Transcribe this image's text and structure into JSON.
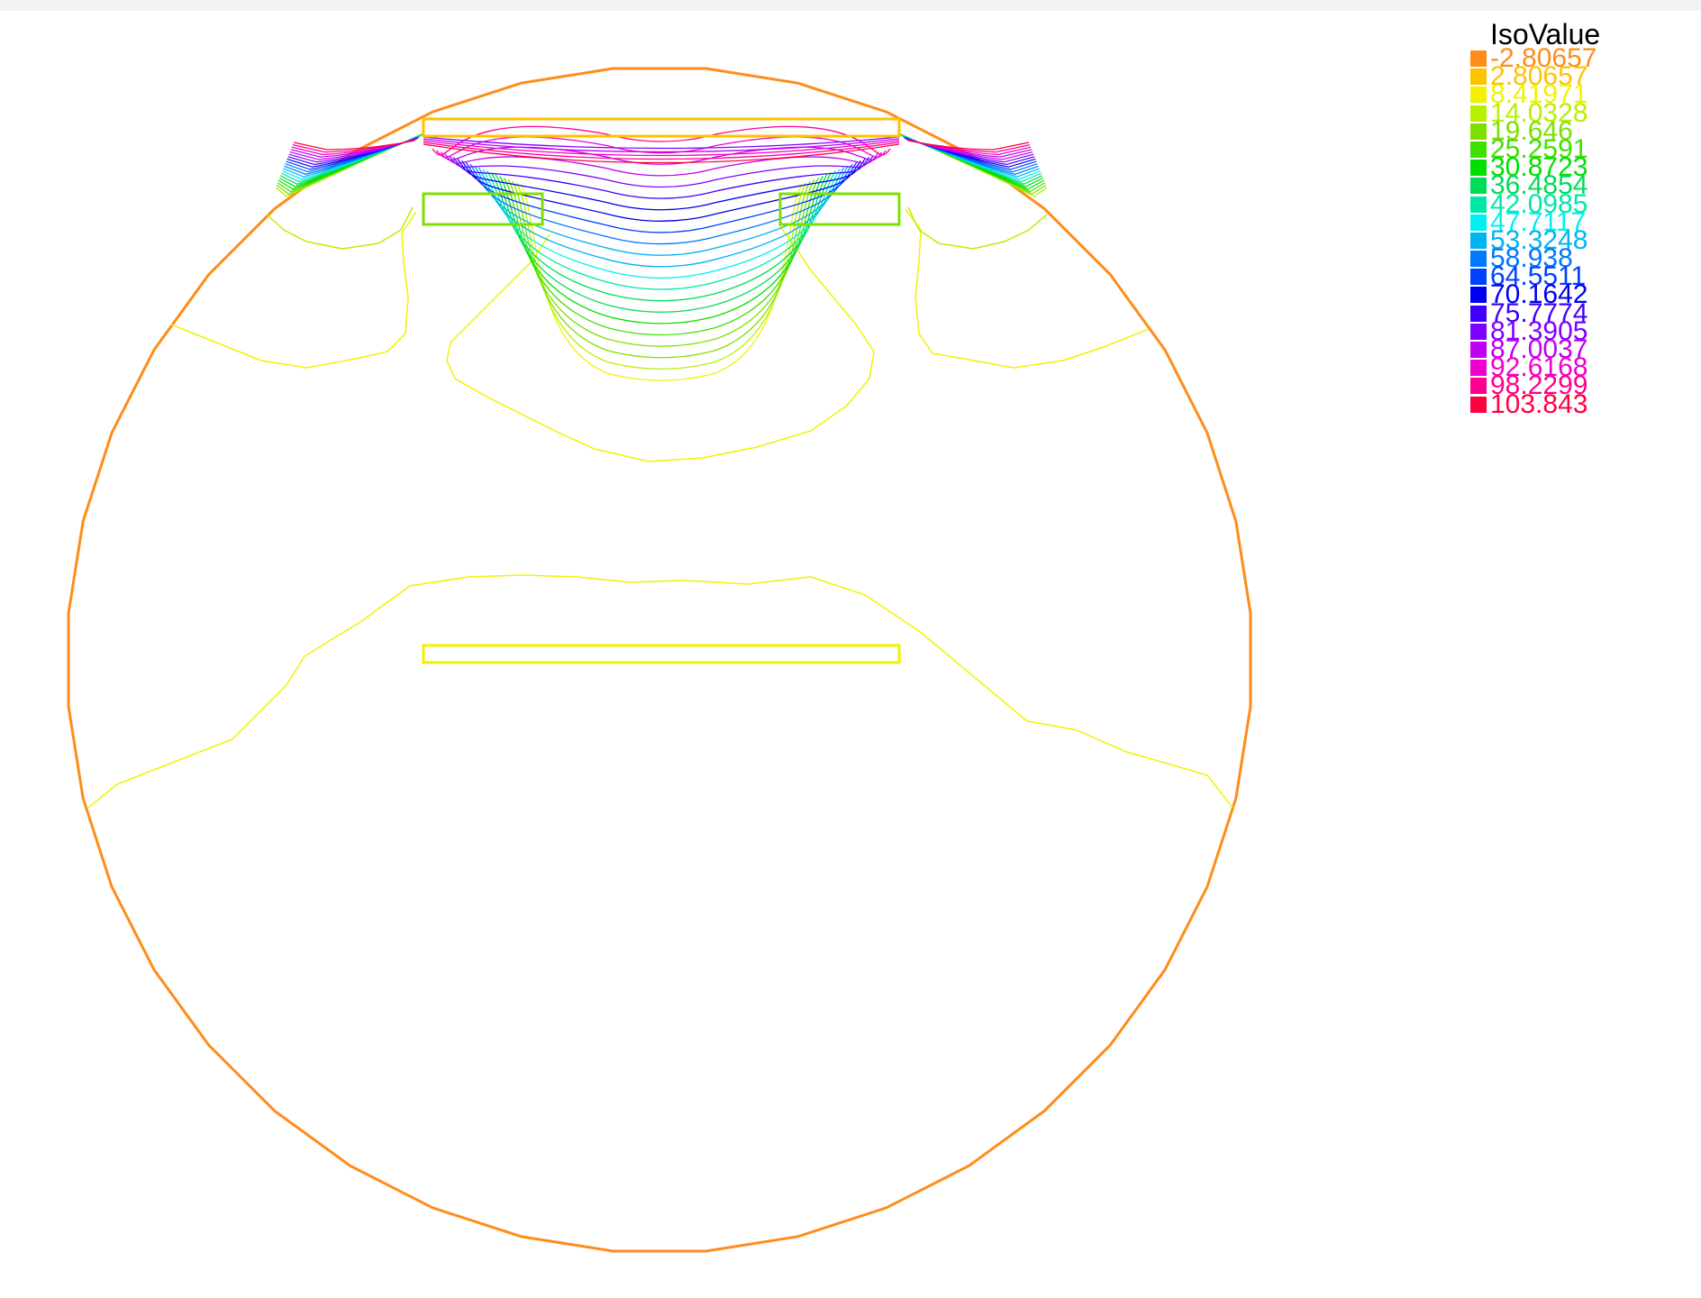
{
  "legend": {
    "title": "IsoValue",
    "entries": [
      {
        "label": "-2.80657",
        "color": "#ff8c1a"
      },
      {
        "label": "2.80657",
        "color": "#ffc200"
      },
      {
        "label": "8.41971",
        "color": "#f2f200"
      },
      {
        "label": "14.0328",
        "color": "#b8f000"
      },
      {
        "label": "19.646",
        "color": "#7de000"
      },
      {
        "label": "25.2591",
        "color": "#3fe000"
      },
      {
        "label": "30.8723",
        "color": "#00e000"
      },
      {
        "label": "36.4854",
        "color": "#00dc55"
      },
      {
        "label": "42.0985",
        "color": "#00e8a8"
      },
      {
        "label": "47.7117",
        "color": "#00f0f0"
      },
      {
        "label": "53.3248",
        "color": "#00b4f0"
      },
      {
        "label": "58.938",
        "color": "#0078ff"
      },
      {
        "label": "64.5511",
        "color": "#0040ff"
      },
      {
        "label": "70.1642",
        "color": "#0000f0"
      },
      {
        "label": "75.7774",
        "color": "#4000ff"
      },
      {
        "label": "81.3905",
        "color": "#8000ff"
      },
      {
        "label": "87.0037",
        "color": "#c000f0"
      },
      {
        "label": "92.6168",
        "color": "#f000d0"
      },
      {
        "label": "98.2299",
        "color": "#ff0090"
      },
      {
        "label": "103.843",
        "color": "#ff0040"
      }
    ]
  },
  "colors": {
    "boundary": "#ff8c1a",
    "top_plate": "#ffc200",
    "side_electrodes": "#7de000",
    "bottom_plate": "#f2f200",
    "contour_yellow": "#f2f200",
    "contour_light_green": "#b8f000"
  }
}
